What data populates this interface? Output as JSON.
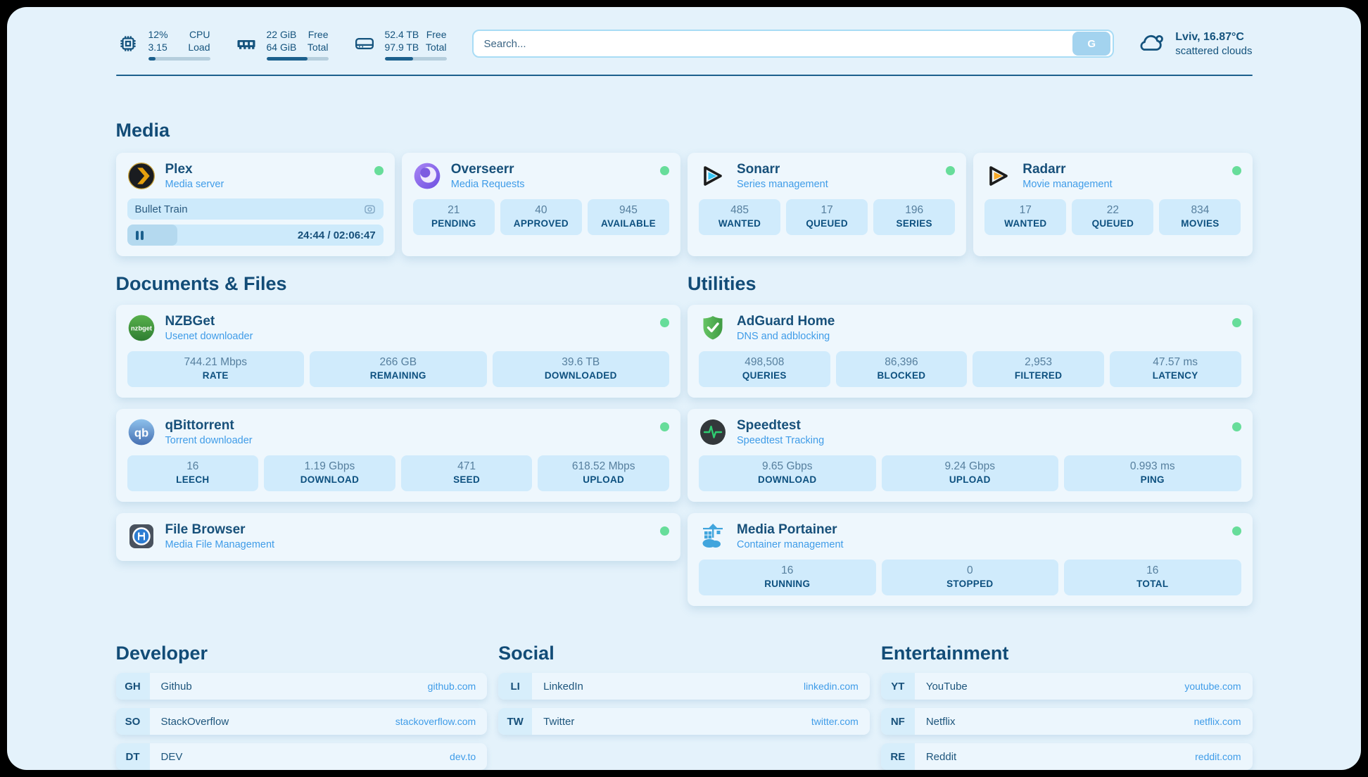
{
  "theme": {
    "page_bg": "#e4f2fb",
    "card_bg": "#eef7fd",
    "statbox_bg": "#d0ebfc",
    "text_navy": "#14537d",
    "accent_blue": "#3f9ce8",
    "status_green": "#67dd9a",
    "progress_fill": "#1c608d"
  },
  "topbar": {
    "stats": [
      {
        "icon": "cpu-icon",
        "line1_value": "12%",
        "line1_label": "CPU",
        "line2_value": "3.15",
        "line2_label": "Load",
        "progress_pct": 12
      },
      {
        "icon": "ram-icon",
        "line1_value": "22 GiB",
        "line1_label": "Free",
        "line2_value": "64 GiB",
        "line2_label": "Total",
        "progress_pct": 66
      },
      {
        "icon": "disk-icon",
        "line1_value": "52.4 TB",
        "line1_label": "Free",
        "line2_value": "97.9 TB",
        "line2_label": "Total",
        "progress_pct": 46
      }
    ],
    "search": {
      "placeholder": "Search...",
      "button_label": "G"
    },
    "weather": {
      "location_temp": "Lviv, 16.87°C",
      "condition": "scattered clouds"
    }
  },
  "sections": {
    "media": {
      "title": "Media",
      "cards": [
        {
          "name": "Plex",
          "subtitle": "Media server",
          "status": "online",
          "now_playing": {
            "title": "Bullet Train",
            "state": "paused",
            "time_display": "24:44 / 02:06:47",
            "progress_pct": 19.5
          }
        },
        {
          "name": "Overseerr",
          "subtitle": "Media Requests",
          "status": "online",
          "stats": [
            {
              "value": "21",
              "label": "PENDING"
            },
            {
              "value": "40",
              "label": "APPROVED"
            },
            {
              "value": "945",
              "label": "AVAILABLE"
            }
          ]
        },
        {
          "name": "Sonarr",
          "subtitle": "Series management",
          "status": "online",
          "stats": [
            {
              "value": "485",
              "label": "WANTED"
            },
            {
              "value": "17",
              "label": "QUEUED"
            },
            {
              "value": "196",
              "label": "SERIES"
            }
          ]
        },
        {
          "name": "Radarr",
          "subtitle": "Movie management",
          "status": "online",
          "stats": [
            {
              "value": "17",
              "label": "WANTED"
            },
            {
              "value": "22",
              "label": "QUEUED"
            },
            {
              "value": "834",
              "label": "MOVIES"
            }
          ]
        }
      ]
    },
    "documents": {
      "title": "Documents & Files",
      "cards": [
        {
          "name": "NZBGet",
          "subtitle": "Usenet downloader",
          "status": "online",
          "stats": [
            {
              "value": "744.21 Mbps",
              "label": "RATE"
            },
            {
              "value": "266 GB",
              "label": "REMAINING"
            },
            {
              "value": "39.6 TB",
              "label": "DOWNLOADED"
            }
          ]
        },
        {
          "name": "qBittorrent",
          "subtitle": "Torrent downloader",
          "status": "online",
          "stats": [
            {
              "value": "16",
              "label": "LEECH"
            },
            {
              "value": "1.19 Gbps",
              "label": "DOWNLOAD"
            },
            {
              "value": "471",
              "label": "SEED"
            },
            {
              "value": "618.52 Mbps",
              "label": "UPLOAD"
            }
          ]
        },
        {
          "name": "File Browser",
          "subtitle": "Media File Management",
          "status": "online",
          "stats": []
        }
      ]
    },
    "utilities": {
      "title": "Utilities",
      "cards": [
        {
          "name": "AdGuard Home",
          "subtitle": "DNS and adblocking",
          "status": "online",
          "stats": [
            {
              "value": "498,508",
              "label": "QUERIES"
            },
            {
              "value": "86,396",
              "label": "BLOCKED"
            },
            {
              "value": "2,953",
              "label": "FILTERED"
            },
            {
              "value": "47.57 ms",
              "label": "LATENCY"
            }
          ]
        },
        {
          "name": "Speedtest",
          "subtitle": "Speedtest Tracking",
          "status": "online",
          "stats": [
            {
              "value": "9.65 Gbps",
              "label": "DOWNLOAD"
            },
            {
              "value": "9.24 Gbps",
              "label": "UPLOAD"
            },
            {
              "value": "0.993 ms",
              "label": "PING"
            }
          ]
        },
        {
          "name": "Media Portainer",
          "subtitle": "Container management",
          "status": "online",
          "stats": [
            {
              "value": "16",
              "label": "RUNNING"
            },
            {
              "value": "0",
              "label": "STOPPED"
            },
            {
              "value": "16",
              "label": "TOTAL"
            }
          ]
        }
      ]
    },
    "links": [
      {
        "title": "Developer",
        "items": [
          {
            "abbr": "GH",
            "name": "Github",
            "url": "github.com"
          },
          {
            "abbr": "SO",
            "name": "StackOverflow",
            "url": "stackoverflow.com"
          },
          {
            "abbr": "DT",
            "name": "DEV",
            "url": "dev.to"
          }
        ]
      },
      {
        "title": "Social",
        "items": [
          {
            "abbr": "LI",
            "name": "LinkedIn",
            "url": "linkedin.com"
          },
          {
            "abbr": "TW",
            "name": "Twitter",
            "url": "twitter.com"
          }
        ]
      },
      {
        "title": "Entertainment",
        "items": [
          {
            "abbr": "YT",
            "name": "YouTube",
            "url": "youtube.com"
          },
          {
            "abbr": "NF",
            "name": "Netflix",
            "url": "netflix.com"
          },
          {
            "abbr": "RE",
            "name": "Reddit",
            "url": "reddit.com"
          }
        ]
      }
    ]
  }
}
